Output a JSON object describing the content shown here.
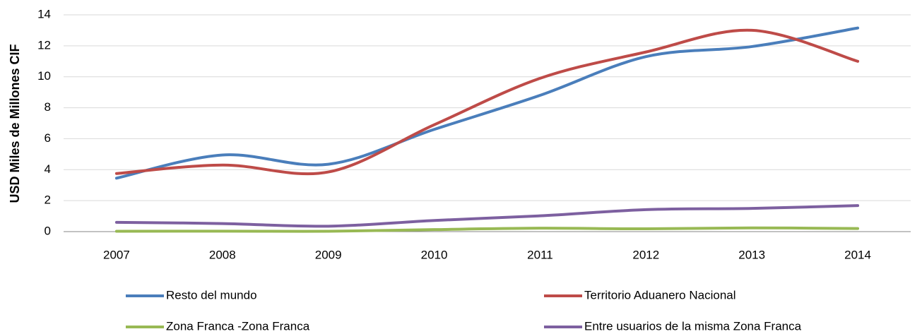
{
  "chart_data": {
    "type": "line",
    "y_label": "USD Miles de Millones CIF",
    "categories": [
      "2007",
      "2008",
      "2009",
      "2010",
      "2011",
      "2012",
      "2013",
      "2014"
    ],
    "series": [
      {
        "name": "Resto del mundo",
        "color": "#4a7ebb",
        "values": [
          3.45,
          4.95,
          4.35,
          6.6,
          8.8,
          11.3,
          11.95,
          13.15
        ]
      },
      {
        "name": "Territorio Aduanero Nacional",
        "color": "#be4b48",
        "values": [
          3.75,
          4.3,
          3.85,
          6.9,
          9.9,
          11.6,
          13.0,
          11.0
        ]
      },
      {
        "name": "Zona Franca -Zona Franca",
        "color": "#98b954",
        "values": [
          0.02,
          0.03,
          0.02,
          0.13,
          0.22,
          0.18,
          0.24,
          0.2
        ]
      },
      {
        "name": "Entre usuarios de la misma Zona Franca",
        "color": "#7d60a0",
        "values": [
          0.6,
          0.52,
          0.35,
          0.72,
          1.02,
          1.42,
          1.5,
          1.68
        ]
      }
    ],
    "ylim": [
      0,
      14
    ],
    "yticks": [
      0,
      2,
      4,
      6,
      8,
      10,
      12,
      14
    ],
    "grid": true,
    "smooth": true,
    "legend": "bottom"
  }
}
